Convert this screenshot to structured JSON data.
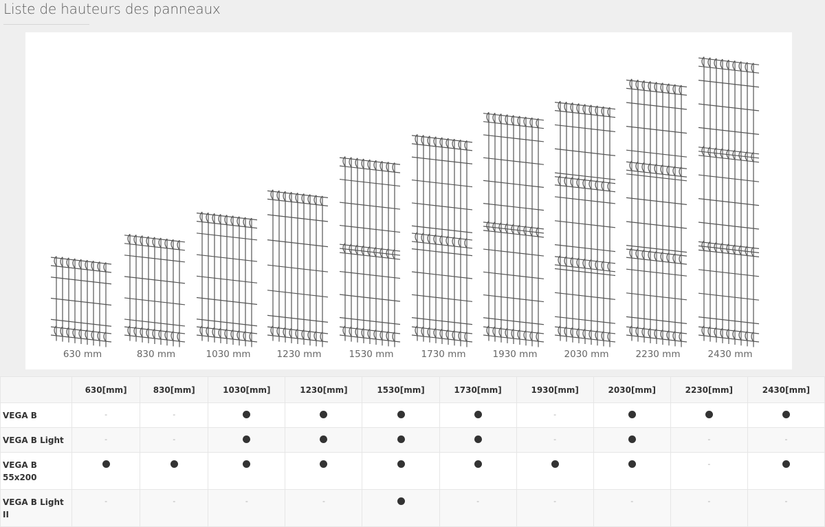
{
  "title": "Liste de hauteurs des panneaux",
  "panels": [
    {
      "height_mm": 630,
      "label": "630 mm"
    },
    {
      "height_mm": 830,
      "label": "830 mm"
    },
    {
      "height_mm": 1030,
      "label": "1030 mm"
    },
    {
      "height_mm": 1230,
      "label": "1230 mm"
    },
    {
      "height_mm": 1530,
      "label": "1530 mm"
    },
    {
      "height_mm": 1730,
      "label": "1730 mm"
    },
    {
      "height_mm": 1930,
      "label": "1930 mm"
    },
    {
      "height_mm": 2030,
      "label": "2030 mm"
    },
    {
      "height_mm": 2230,
      "label": "2230 mm"
    },
    {
      "height_mm": 2430,
      "label": "2430 mm"
    }
  ],
  "table": {
    "headers": [
      "",
      "630[mm]",
      "830[mm]",
      "1030[mm]",
      "1230[mm]",
      "1530[mm]",
      "1730[mm]",
      "1930[mm]",
      "2030[mm]",
      "2230[mm]",
      "2430[mm]"
    ],
    "available_symbol": "●",
    "unavailable_symbol": "-",
    "rows": [
      {
        "name": "VEGA B",
        "values": [
          false,
          false,
          true,
          true,
          true,
          true,
          false,
          true,
          true,
          true
        ]
      },
      {
        "name": "VEGA B Light",
        "values": [
          false,
          false,
          true,
          true,
          true,
          true,
          false,
          true,
          false,
          false
        ]
      },
      {
        "name": "VEGA B 55x200",
        "values": [
          true,
          true,
          true,
          true,
          true,
          true,
          true,
          true,
          false,
          true
        ]
      },
      {
        "name": "VEGA B Light II",
        "values": [
          false,
          false,
          false,
          false,
          true,
          false,
          false,
          false,
          false,
          false
        ]
      }
    ]
  }
}
